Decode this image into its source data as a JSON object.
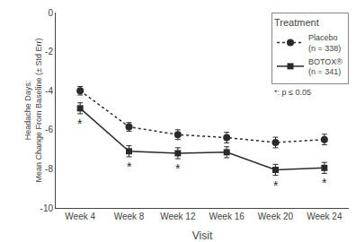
{
  "chart_data": {
    "type": "line",
    "categories": [
      "Week 4",
      "Week 8",
      "Week 12",
      "Week 16",
      "Week 20",
      "Week 24"
    ],
    "xlabel": "Visit",
    "ylabel": "Headache Days:\nMean Change From Baseline (± Std Err)",
    "legend_title": "Treatment",
    "series": [
      {
        "name": "Placebo\n(n = 338)",
        "color": "#2a2a2a",
        "marker": "circle",
        "line_style": "dot",
        "values": [
          -4.0,
          -5.85,
          -6.25,
          -6.4,
          -6.65,
          -6.5
        ],
        "errors": [
          0.22,
          0.22,
          0.25,
          0.27,
          0.27,
          0.27
        ]
      },
      {
        "name": "BOTOX®\n(n = 341)",
        "color": "#2a2a2a",
        "marker": "square",
        "line_style": "solid",
        "values": [
          -4.9,
          -7.1,
          -7.2,
          -7.15,
          -8.05,
          -7.95
        ],
        "errors": [
          0.28,
          0.28,
          0.28,
          0.28,
          0.28,
          0.28
        ],
        "point_labels": [
          "*",
          "*",
          "*",
          null,
          "*",
          "*"
        ]
      }
    ],
    "annotations": [
      "*: p ≤ 0.05"
    ],
    "ylim": [
      -10,
      0
    ],
    "yticks": [
      0,
      -2,
      -4,
      -6,
      -8,
      -10
    ],
    "grid": false,
    "legend": "upper right"
  }
}
